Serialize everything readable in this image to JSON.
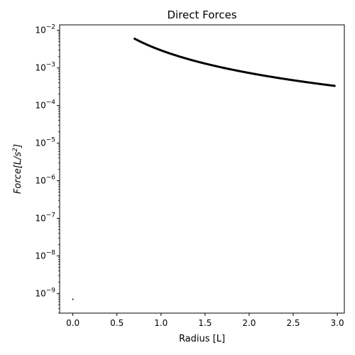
{
  "chart_data": {
    "type": "scatter",
    "title": "Direct Forces",
    "xlabel": "Radius [L]",
    "ylabel": {
      "prefix": "Force[L/s",
      "superscript": "2",
      "suffix": "]"
    },
    "yscale": "log",
    "xlim": [
      -0.15,
      3.08
    ],
    "ylim": [
      3e-10,
      0.014
    ],
    "grid": false,
    "x_ticks": [
      {
        "value": 0.0,
        "label": "0.0"
      },
      {
        "value": 0.5,
        "label": "0.5"
      },
      {
        "value": 1.0,
        "label": "1.0"
      },
      {
        "value": 1.5,
        "label": "1.5"
      },
      {
        "value": 2.0,
        "label": "2.0"
      },
      {
        "value": 2.5,
        "label": "2.5"
      },
      {
        "value": 3.0,
        "label": "3.0"
      }
    ],
    "y_ticks": [
      {
        "exp": -2,
        "base": "10",
        "label": "−2"
      },
      {
        "exp": -3,
        "base": "10",
        "label": "−3"
      },
      {
        "exp": -4,
        "base": "10",
        "label": "−4"
      },
      {
        "exp": -5,
        "base": "10",
        "label": "−5"
      },
      {
        "exp": -6,
        "base": "10",
        "label": "−6"
      },
      {
        "exp": -7,
        "base": "10",
        "label": "−7"
      },
      {
        "exp": -8,
        "base": "10",
        "label": "−8"
      },
      {
        "exp": -9,
        "base": "10",
        "label": "−9"
      }
    ],
    "series": [
      {
        "color": "#000000",
        "curve": {
          "x_start": 0.7,
          "x_end": 2.97,
          "y_at_x_start": 0.006,
          "falloff": "1/r^2"
        },
        "points": [
          [
            0.0,
            7e-10
          ]
        ]
      }
    ]
  }
}
